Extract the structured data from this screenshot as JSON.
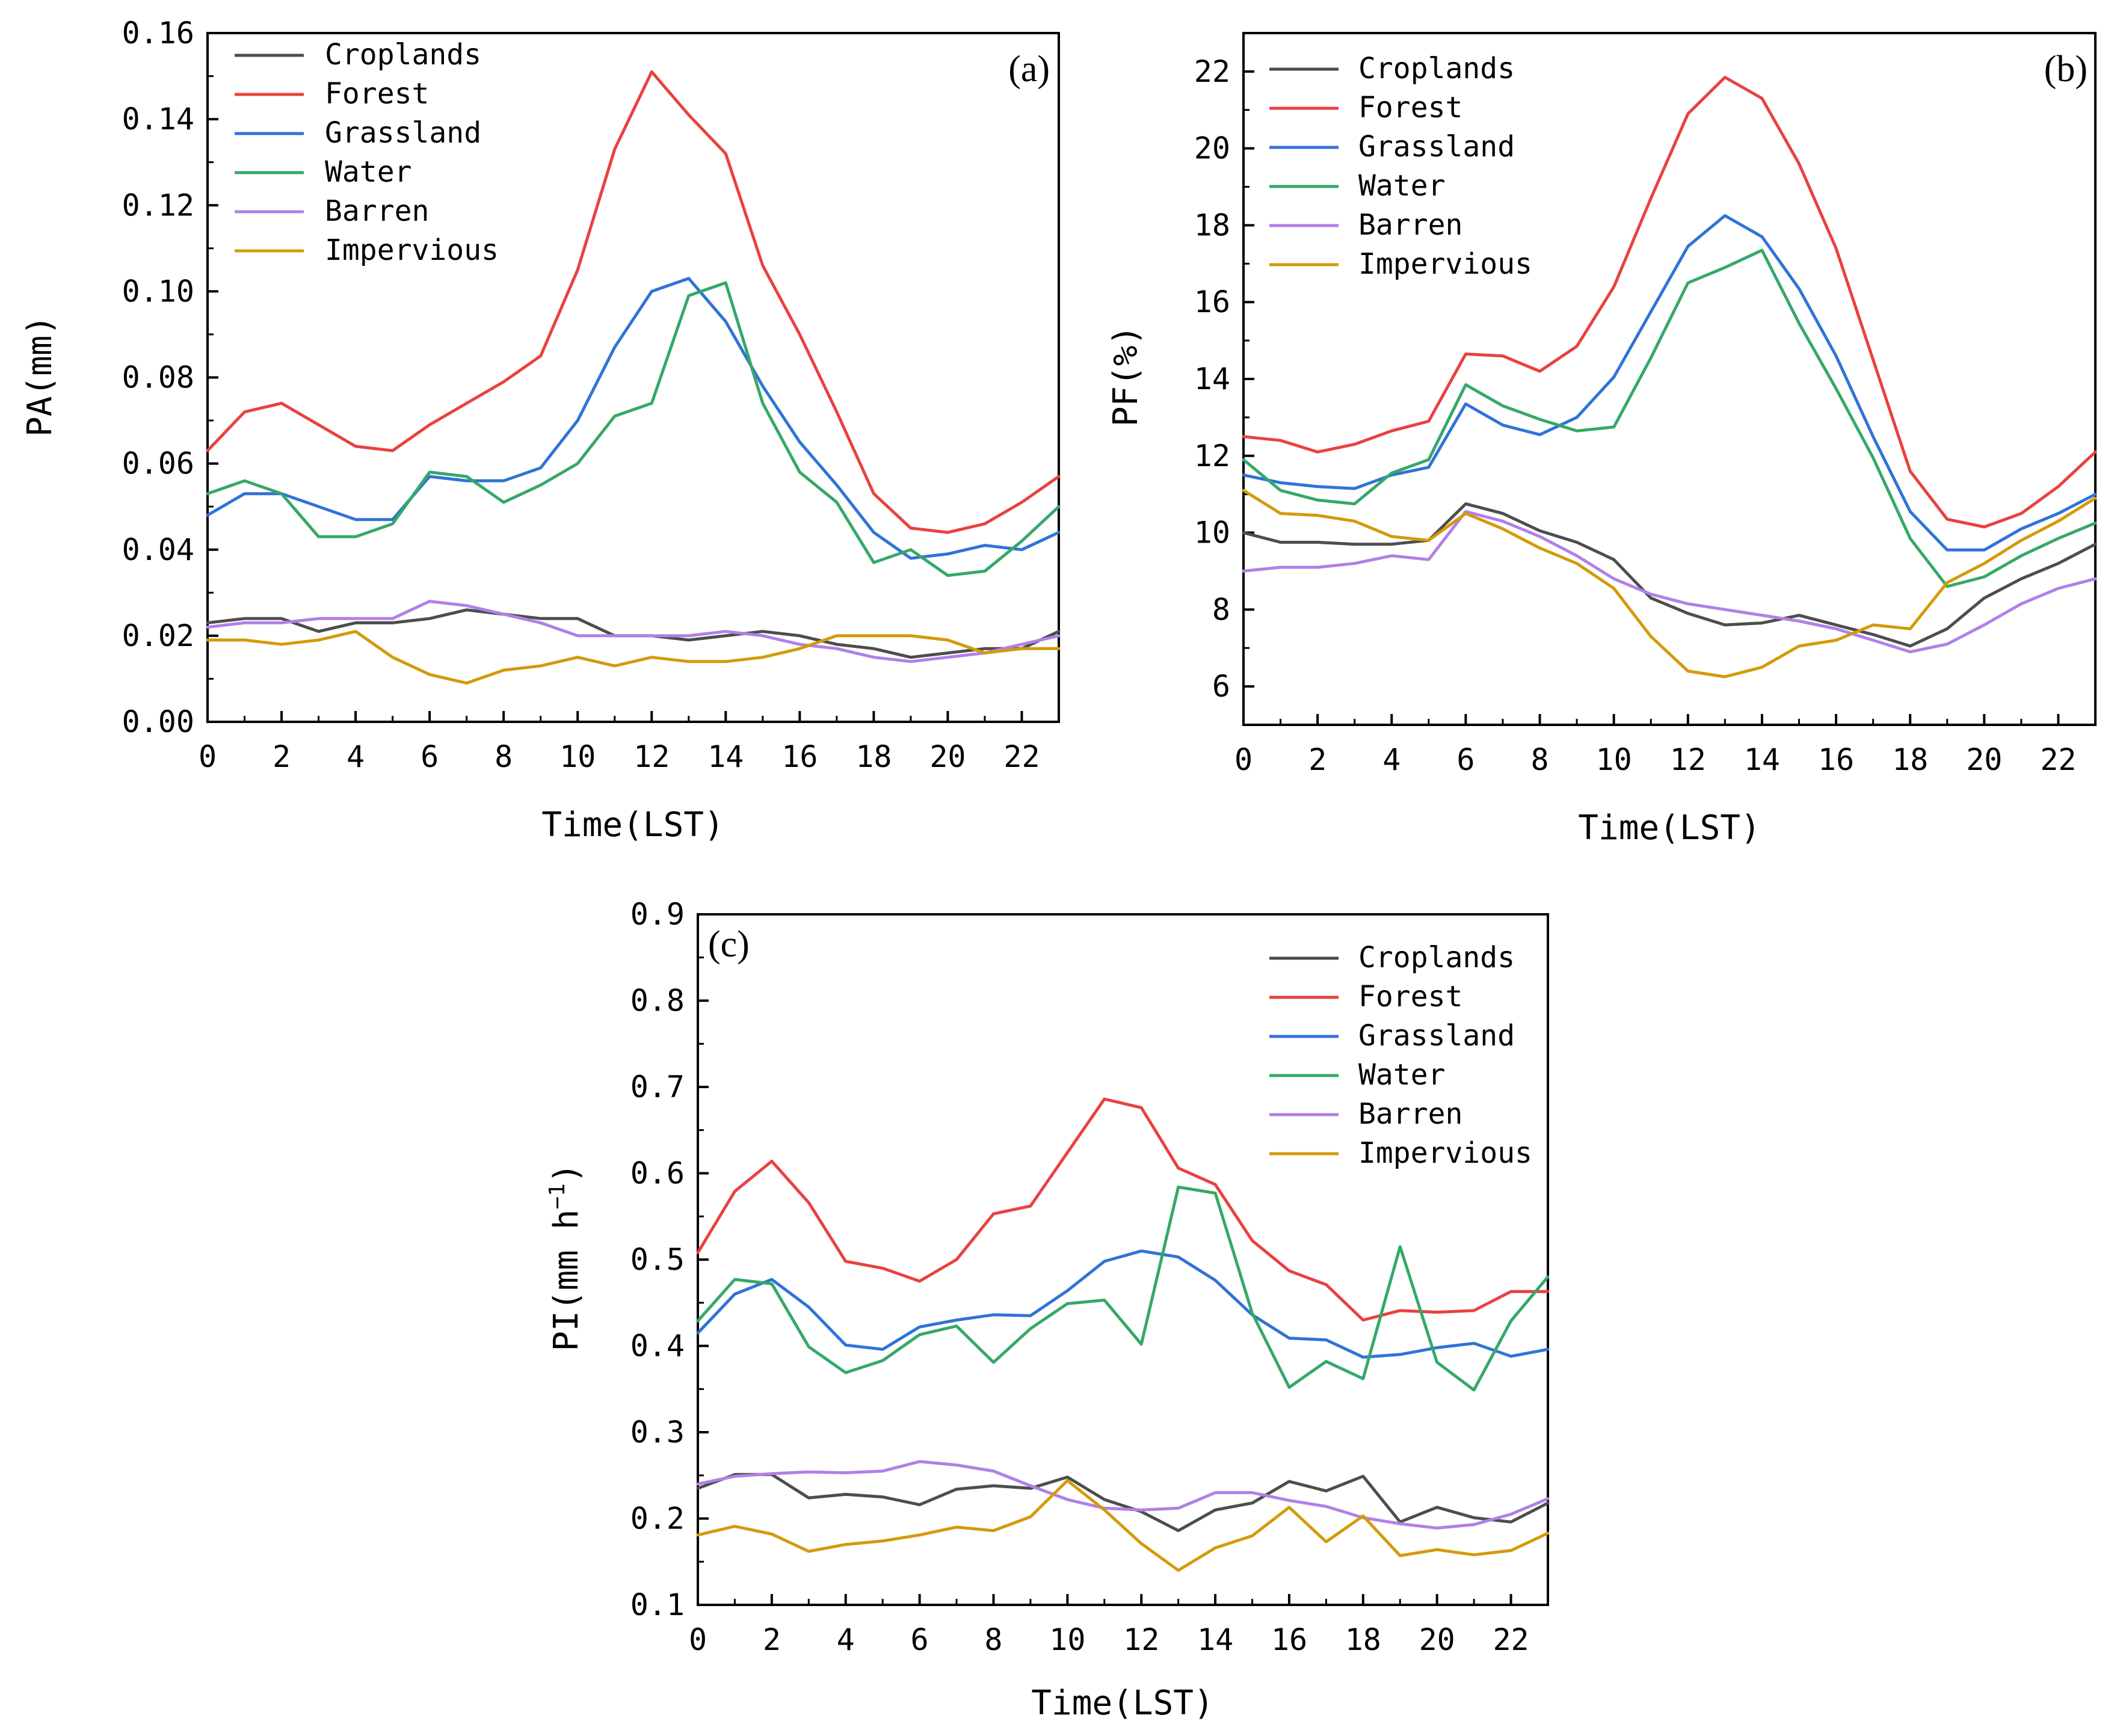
{
  "colors": {
    "Croplands": "#4d4d4d",
    "Forest": "#e8423f",
    "Grassland": "#2f73d6",
    "Water": "#35a868",
    "Barren": "#b27fe8",
    "Impervious": "#d49a0a"
  },
  "chart_data": [
    {
      "type": "line",
      "panel_label": "(a)",
      "xlabel": "Time(LST)",
      "ylabel": "PA(mm)",
      "xlim": [
        0,
        23
      ],
      "ylim": [
        0.0,
        0.16
      ],
      "x_ticks": [
        0,
        2,
        4,
        6,
        8,
        10,
        12,
        14,
        16,
        18,
        20,
        22
      ],
      "x_tick_labels": [
        "0",
        "2",
        "4",
        "6",
        "8",
        "10",
        "12",
        "14",
        "16",
        "18",
        "20",
        "22"
      ],
      "y_ticks": [
        0.0,
        0.02,
        0.04,
        0.06,
        0.08,
        0.1,
        0.12,
        0.14,
        0.16
      ],
      "y_tick_labels": [
        "0.00",
        "0.02",
        "0.04",
        "0.06",
        "0.08",
        "0.10",
        "0.12",
        "0.14",
        "0.16"
      ],
      "legend": {
        "position": "top-left",
        "labels": [
          "Croplands",
          "Forest",
          "Grassland",
          "Water",
          "Barren",
          "Impervious"
        ]
      },
      "x": [
        0,
        1,
        2,
        3,
        4,
        5,
        6,
        7,
        8,
        9,
        10,
        11,
        12,
        13,
        14,
        15,
        16,
        17,
        18,
        19,
        20,
        21,
        22,
        23
      ],
      "series": [
        {
          "name": "Croplands",
          "values": [
            0.023,
            0.024,
            0.024,
            0.021,
            0.023,
            0.023,
            0.024,
            0.026,
            0.025,
            0.024,
            0.024,
            0.02,
            0.02,
            0.019,
            0.02,
            0.021,
            0.02,
            0.018,
            0.017,
            0.015,
            0.016,
            0.017,
            0.017,
            0.021
          ]
        },
        {
          "name": "Forest",
          "values": [
            0.063,
            0.072,
            0.074,
            0.069,
            0.064,
            0.063,
            0.069,
            0.074,
            0.079,
            0.085,
            0.105,
            0.133,
            0.151,
            0.141,
            0.132,
            0.106,
            0.09,
            0.072,
            0.053,
            0.045,
            0.044,
            0.046,
            0.051,
            0.057
          ]
        },
        {
          "name": "Grassland",
          "values": [
            0.048,
            0.053,
            0.053,
            0.05,
            0.047,
            0.047,
            0.057,
            0.056,
            0.056,
            0.059,
            0.07,
            0.087,
            0.1,
            0.103,
            0.093,
            0.078,
            0.065,
            0.055,
            0.044,
            0.038,
            0.039,
            0.041,
            0.04,
            0.044
          ]
        },
        {
          "name": "Water",
          "values": [
            0.053,
            0.056,
            0.053,
            0.043,
            0.043,
            0.046,
            0.058,
            0.057,
            0.051,
            0.055,
            0.06,
            0.071,
            0.074,
            0.099,
            0.102,
            0.074,
            0.058,
            0.051,
            0.037,
            0.04,
            0.034,
            0.035,
            0.042,
            0.05
          ]
        },
        {
          "name": "Barren",
          "values": [
            0.022,
            0.023,
            0.023,
            0.024,
            0.024,
            0.024,
            0.028,
            0.027,
            0.025,
            0.023,
            0.02,
            0.02,
            0.02,
            0.02,
            0.021,
            0.02,
            0.018,
            0.017,
            0.015,
            0.014,
            0.015,
            0.016,
            0.018,
            0.02
          ]
        },
        {
          "name": "Impervious",
          "values": [
            0.019,
            0.019,
            0.018,
            0.019,
            0.021,
            0.015,
            0.011,
            0.009,
            0.012,
            0.013,
            0.015,
            0.013,
            0.015,
            0.014,
            0.014,
            0.015,
            0.017,
            0.02,
            0.02,
            0.02,
            0.019,
            0.016,
            0.017,
            0.017
          ]
        }
      ]
    },
    {
      "type": "line",
      "panel_label": "(b)",
      "xlabel": "Time(LST)",
      "ylabel": "PF(%)",
      "xlim": [
        0,
        23
      ],
      "ylim": [
        5,
        23
      ],
      "x_ticks": [
        0,
        2,
        4,
        6,
        8,
        10,
        12,
        14,
        16,
        18,
        20,
        22
      ],
      "x_tick_labels": [
        "0",
        "2",
        "4",
        "6",
        "8",
        "10",
        "12",
        "14",
        "16",
        "18",
        "20",
        "22"
      ],
      "y_ticks": [
        6,
        8,
        10,
        12,
        14,
        16,
        18,
        20,
        22
      ],
      "y_tick_labels": [
        "6",
        "8",
        "10",
        "12",
        "14",
        "16",
        "18",
        "20",
        "22"
      ],
      "legend": {
        "position": "top-left",
        "labels": [
          "Croplands",
          "Forest",
          "Grassland",
          "Water",
          "Barren",
          "Impervious"
        ]
      },
      "x": [
        0,
        1,
        2,
        3,
        4,
        5,
        6,
        7,
        8,
        9,
        10,
        11,
        12,
        13,
        14,
        15,
        16,
        17,
        18,
        19,
        20,
        21,
        22,
        23
      ],
      "series": [
        {
          "name": "Croplands",
          "values": [
            10.0,
            9.75,
            9.75,
            9.7,
            9.7,
            9.8,
            10.75,
            10.5,
            10.05,
            9.75,
            9.3,
            8.3,
            7.9,
            7.6,
            7.65,
            7.85,
            7.6,
            7.35,
            7.05,
            7.5,
            8.3,
            8.8,
            9.2,
            9.7
          ]
        },
        {
          "name": "Forest",
          "values": [
            12.5,
            12.4,
            12.1,
            12.3,
            12.65,
            12.9,
            14.65,
            14.6,
            14.2,
            14.85,
            16.4,
            18.7,
            20.9,
            21.85,
            21.3,
            19.6,
            17.4,
            14.5,
            11.6,
            10.35,
            10.15,
            10.5,
            11.2,
            12.1
          ]
        },
        {
          "name": "Grassland",
          "values": [
            11.5,
            11.3,
            11.2,
            11.15,
            11.5,
            11.7,
            13.35,
            12.8,
            12.55,
            13.0,
            14.05,
            15.75,
            17.45,
            18.25,
            17.7,
            16.35,
            14.6,
            12.5,
            10.55,
            9.55,
            9.55,
            10.1,
            10.5,
            11.0
          ]
        },
        {
          "name": "Water",
          "values": [
            11.9,
            11.1,
            10.85,
            10.75,
            11.55,
            11.9,
            13.85,
            13.3,
            12.95,
            12.65,
            12.75,
            14.55,
            16.5,
            16.9,
            17.35,
            15.45,
            13.75,
            11.95,
            9.85,
            8.6,
            8.85,
            9.4,
            9.85,
            10.25
          ]
        },
        {
          "name": "Barren",
          "values": [
            9.0,
            9.1,
            9.1,
            9.2,
            9.4,
            9.3,
            10.55,
            10.3,
            9.9,
            9.4,
            8.8,
            8.4,
            8.15,
            8.0,
            7.85,
            7.7,
            7.5,
            7.2,
            6.9,
            7.1,
            7.6,
            8.15,
            8.55,
            8.8
          ]
        },
        {
          "name": "Impervious",
          "values": [
            11.1,
            10.5,
            10.45,
            10.3,
            9.9,
            9.8,
            10.5,
            10.1,
            9.6,
            9.2,
            8.55,
            7.3,
            6.4,
            6.25,
            6.5,
            7.05,
            7.2,
            7.6,
            7.5,
            8.7,
            9.2,
            9.8,
            10.3,
            10.9
          ]
        }
      ]
    },
    {
      "type": "line",
      "panel_label": "(c)",
      "xlabel": "Time(LST)",
      "ylabel": "PI(mm h",
      "ylabel_superscript": "−1",
      "ylabel_suffix": ")",
      "xlim": [
        0,
        23
      ],
      "ylim": [
        0.1,
        0.9
      ],
      "x_ticks": [
        0,
        2,
        4,
        6,
        8,
        10,
        12,
        14,
        16,
        18,
        20,
        22
      ],
      "x_tick_labels": [
        "0",
        "2",
        "4",
        "6",
        "8",
        "10",
        "12",
        "14",
        "16",
        "18",
        "20",
        "22"
      ],
      "y_ticks": [
        0.1,
        0.2,
        0.3,
        0.4,
        0.5,
        0.6,
        0.7,
        0.8,
        0.9
      ],
      "y_tick_labels": [
        "0.1",
        "0.2",
        "0.3",
        "0.4",
        "0.5",
        "0.6",
        "0.7",
        "0.8",
        "0.9"
      ],
      "legend": {
        "position": "top-right",
        "labels": [
          "Croplands",
          "Forest",
          "Grassland",
          "Water",
          "Barren",
          "Impervious"
        ]
      },
      "x": [
        0,
        1,
        2,
        3,
        4,
        5,
        6,
        7,
        8,
        9,
        10,
        11,
        12,
        13,
        14,
        15,
        16,
        17,
        18,
        19,
        20,
        21,
        22,
        23
      ],
      "series": [
        {
          "name": "Croplands",
          "values": [
            0.235,
            0.251,
            0.251,
            0.224,
            0.228,
            0.225,
            0.216,
            0.234,
            0.238,
            0.235,
            0.248,
            0.222,
            0.208,
            0.186,
            0.21,
            0.218,
            0.243,
            0.232,
            0.249,
            0.196,
            0.213,
            0.201,
            0.196,
            0.218
          ]
        },
        {
          "name": "Forest",
          "values": [
            0.508,
            0.579,
            0.614,
            0.566,
            0.498,
            0.49,
            0.475,
            0.5,
            0.553,
            0.562,
            0.624,
            0.686,
            0.676,
            0.606,
            0.587,
            0.522,
            0.487,
            0.471,
            0.43,
            0.441,
            0.439,
            0.441,
            0.463,
            0.463
          ]
        },
        {
          "name": "Grassland",
          "values": [
            0.415,
            0.46,
            0.477,
            0.445,
            0.401,
            0.396,
            0.422,
            0.43,
            0.436,
            0.435,
            0.464,
            0.498,
            0.51,
            0.503,
            0.476,
            0.436,
            0.409,
            0.407,
            0.387,
            0.39,
            0.398,
            0.403,
            0.388,
            0.396
          ]
        },
        {
          "name": "Water",
          "values": [
            0.429,
            0.477,
            0.472,
            0.399,
            0.369,
            0.383,
            0.413,
            0.423,
            0.381,
            0.42,
            0.449,
            0.453,
            0.402,
            0.584,
            0.577,
            0.438,
            0.352,
            0.382,
            0.362,
            0.515,
            0.381,
            0.349,
            0.429,
            0.48
          ]
        },
        {
          "name": "Barren",
          "values": [
            0.24,
            0.249,
            0.252,
            0.254,
            0.253,
            0.255,
            0.266,
            0.262,
            0.255,
            0.238,
            0.222,
            0.212,
            0.21,
            0.212,
            0.23,
            0.23,
            0.221,
            0.214,
            0.201,
            0.194,
            0.189,
            0.193,
            0.205,
            0.223
          ]
        },
        {
          "name": "Impervious",
          "values": [
            0.181,
            0.191,
            0.182,
            0.162,
            0.17,
            0.174,
            0.181,
            0.19,
            0.186,
            0.202,
            0.244,
            0.21,
            0.171,
            0.14,
            0.166,
            0.18,
            0.213,
            0.173,
            0.203,
            0.157,
            0.164,
            0.158,
            0.163,
            0.183
          ]
        }
      ]
    }
  ]
}
